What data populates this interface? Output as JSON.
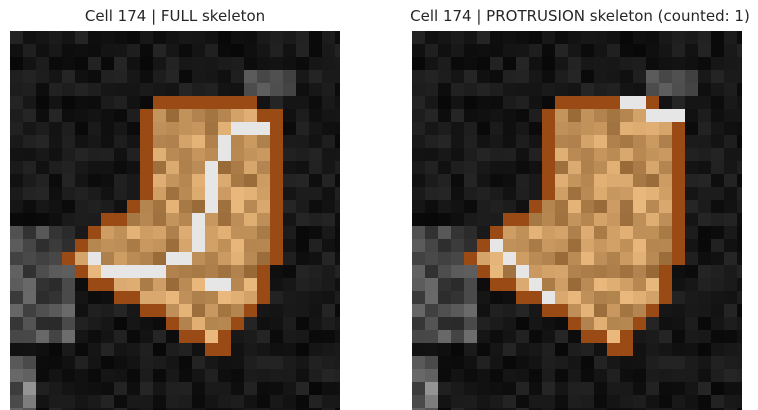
{
  "panels": {
    "left": {
      "title": "Cell 174 | FULL skeleton"
    },
    "right": {
      "title": "Cell 174 | PROTRUSION skeleton (counted: 1)"
    }
  },
  "colors": {
    "background": "#0a0a0a",
    "outline": "#9a4a14",
    "skeleton": "#e6e6e6",
    "title_text": "#262626"
  }
}
